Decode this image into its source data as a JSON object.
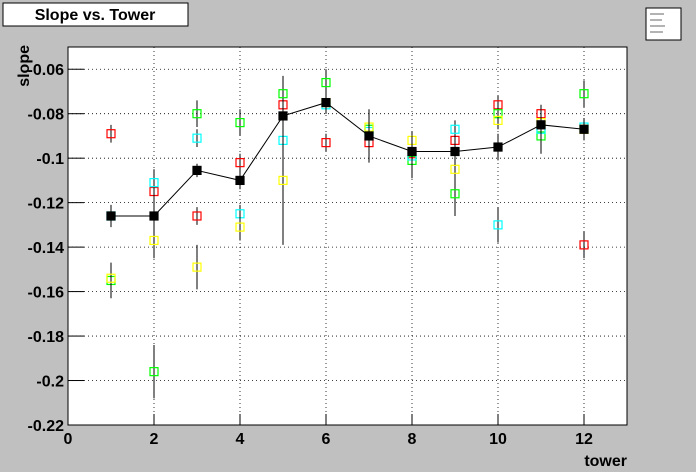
{
  "chart_data": {
    "type": "scatter",
    "title": "Slope vs. Tower",
    "x_label": "tower",
    "y_label": "slope",
    "x": [
      1,
      2,
      3,
      4,
      5,
      6,
      7,
      8,
      9,
      10,
      11,
      12
    ],
    "series": [
      {
        "color": "#000000",
        "marker": "filled",
        "line": true,
        "values": [
          -0.126,
          -0.126,
          -0.1055,
          -0.11,
          -0.081,
          -0.075,
          -0.09,
          -0.097,
          -0.097,
          -0.095,
          -0.085,
          -0.087
        ],
        "errors": [
          0.005,
          0.008,
          0.003,
          0.004,
          0.008,
          0.005,
          0.012,
          0.007,
          0.006,
          0.006,
          0.007,
          0.005
        ]
      },
      {
        "color": "#ff0000",
        "marker": "open",
        "values": [
          -0.089,
          -0.115,
          -0.126,
          -0.102,
          -0.076,
          -0.093,
          -0.093,
          -0.098,
          -0.092,
          -0.076,
          -0.08,
          -0.139
        ],
        "errors": [
          0.004,
          0.004,
          0.004,
          0.004,
          0.004,
          0.004,
          0.004,
          0.004,
          0.004,
          0.004,
          0.004,
          0.006
        ]
      },
      {
        "color": "#00ff00",
        "marker": "open",
        "values": [
          -0.155,
          -0.196,
          -0.08,
          -0.084,
          -0.071,
          -0.066,
          -0.087,
          -0.101,
          -0.116,
          -0.08,
          -0.09,
          -0.071
        ],
        "errors": [
          0.008,
          0.012,
          0.006,
          0.006,
          0.008,
          0.006,
          0.006,
          0.008,
          0.01,
          0.004,
          0.008,
          0.006
        ]
      },
      {
        "color": "#00ffff",
        "marker": "open",
        "values": [
          -0.126,
          -0.111,
          -0.091,
          -0.125,
          -0.092,
          -0.076,
          -0.088,
          -0.099,
          -0.087,
          -0.13,
          -0.087,
          -0.086
        ],
        "errors": [
          0.004,
          0.006,
          0.004,
          0.004,
          0.004,
          0.004,
          0.004,
          0.004,
          0.004,
          0.008,
          0.004,
          0.004
        ]
      },
      {
        "color": "#ffff00",
        "marker": "open",
        "values": [
          -0.154,
          -0.137,
          -0.149,
          -0.131,
          -0.11,
          -0.075,
          -0.086,
          -0.092,
          -0.105,
          -0.083,
          -0.084,
          -0.087
        ],
        "errors": [
          0.006,
          0.008,
          0.01,
          0.006,
          0.029,
          0.004,
          0.004,
          0.004,
          0.006,
          0.004,
          0.004,
          0.004
        ]
      }
    ],
    "xlim": [
      0,
      13
    ],
    "ylim": [
      -0.22,
      -0.05
    ],
    "xticks": [
      0,
      2,
      4,
      6,
      8,
      10,
      12
    ],
    "yticks": [
      -0.22,
      -0.2,
      -0.18,
      -0.16,
      -0.14,
      -0.12,
      -0.1,
      -0.08,
      -0.06
    ],
    "grid": true
  }
}
